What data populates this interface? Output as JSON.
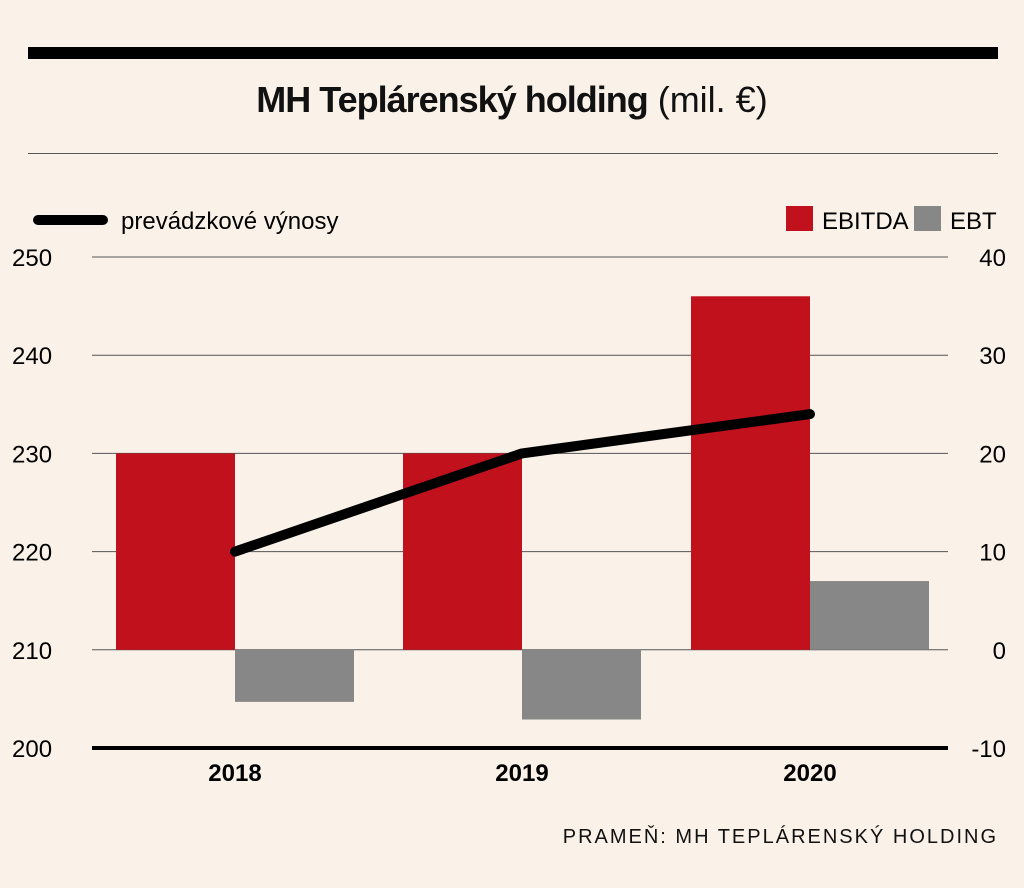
{
  "title": "MH Teplárenský holding",
  "title_unit": "(mil. €)",
  "source": "PRAMEŇ: MH TEPLÁRENSKÝ HOLDING",
  "colors": {
    "ebitda": "#c0111c",
    "ebt": "#878787",
    "line": "#000000",
    "background": "#faf2e9"
  },
  "chart_data": {
    "type": "bar",
    "categories": [
      "2018",
      "2019",
      "2020"
    ],
    "series": [
      {
        "name": "EBITDA",
        "axis": "right",
        "values": [
          20,
          20,
          36
        ]
      },
      {
        "name": "EBT",
        "axis": "right",
        "values": [
          -5.3,
          -7.1,
          7
        ]
      },
      {
        "name": "prevádzkové výnosy",
        "type": "line",
        "axis": "left",
        "values": [
          220,
          230,
          234
        ]
      }
    ],
    "y_left": {
      "lim": [
        200,
        250
      ],
      "ticks": [
        "200",
        "210",
        "220",
        "230",
        "240",
        "250"
      ]
    },
    "y_right": {
      "lim": [
        -10,
        40
      ],
      "ticks": [
        "-10",
        "0",
        "10",
        "20",
        "30",
        "40"
      ]
    },
    "grid": true,
    "legend": {
      "line": "prevádzkové výnosy",
      "bars": [
        "EBITDA",
        "EBT"
      ]
    }
  }
}
